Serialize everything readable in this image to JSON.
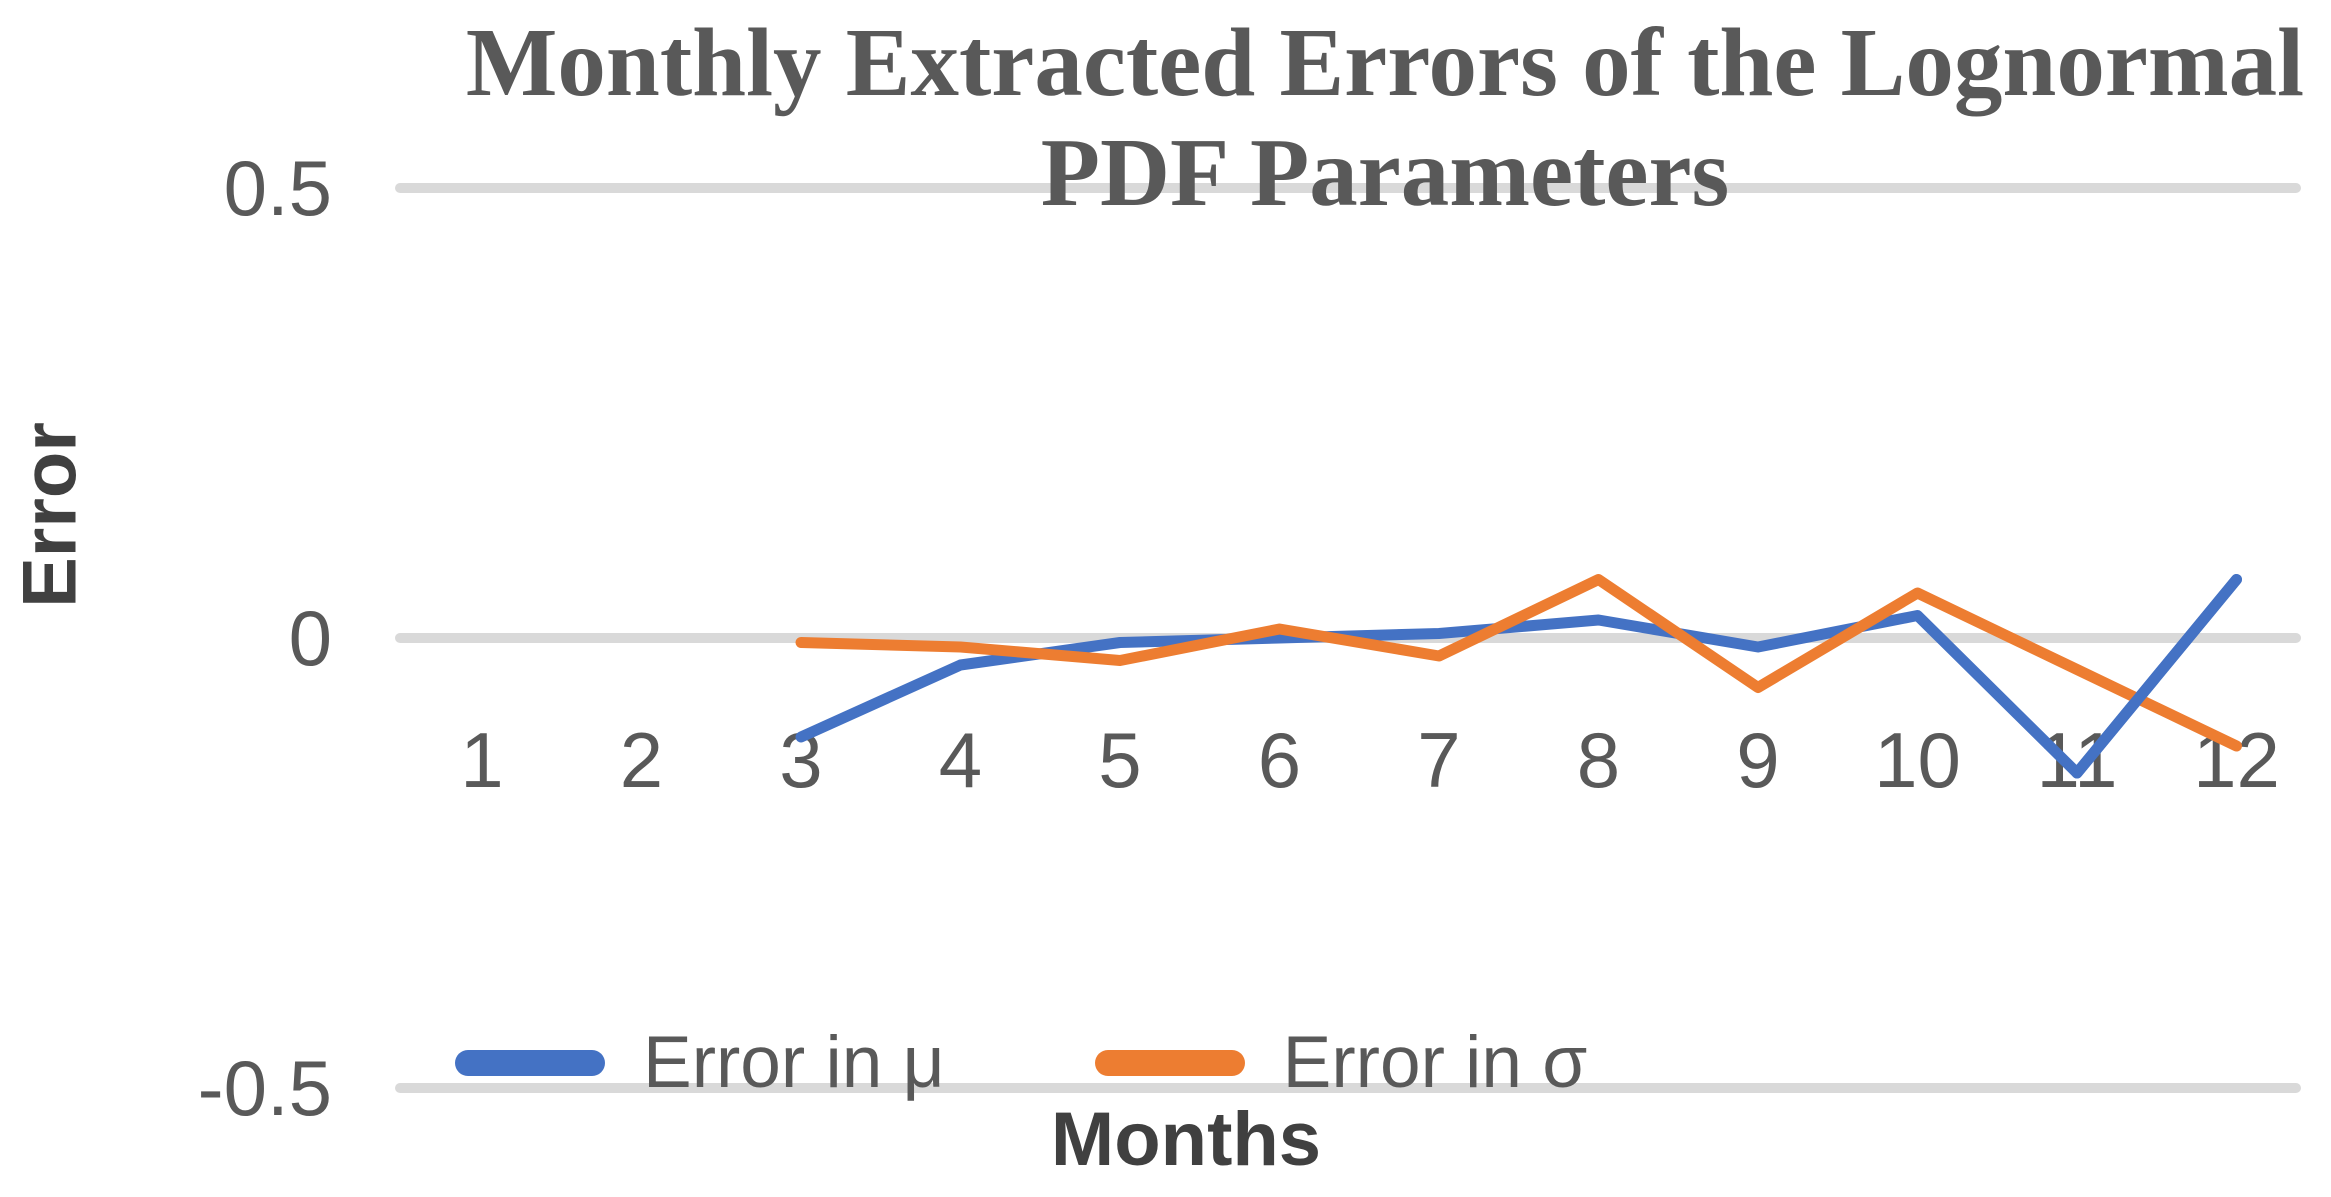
{
  "title": {
    "line1": "Monthly Extracted Errors of the Lognormal",
    "line2": "PDF Parameters"
  },
  "axes": {
    "y_label": "Error",
    "x_label": "Months",
    "y_ticks": [
      "0.5",
      "0",
      "-0.5"
    ],
    "x_ticks": [
      "1",
      "2",
      "3",
      "4",
      "5",
      "6",
      "7",
      "8",
      "9",
      "10",
      "11",
      "12"
    ]
  },
  "legend": [
    {
      "label": "Error in μ",
      "color": "#4472C4"
    },
    {
      "label": "Error in σ",
      "color": "#ED7D31"
    }
  ],
  "colors": {
    "series_mu": "#4472C4",
    "series_sigma": "#ED7D31",
    "gridline": "#D9D9D9",
    "tick_text": "#595959",
    "axis_title_text": "#404040",
    "title_text": "#595959",
    "background": "#FFFFFF"
  },
  "chart_data": {
    "type": "line",
    "title": "Monthly Extracted Errors of the Lognormal PDF Parameters",
    "xlabel": "Months",
    "ylabel": "Error",
    "categories": [
      1,
      2,
      3,
      4,
      5,
      6,
      7,
      8,
      9,
      10,
      11,
      12
    ],
    "series": [
      {
        "name": "Error in μ",
        "color": "#4472C4",
        "values": [
          null,
          null,
          -0.11,
          -0.03,
          -0.005,
          0.0,
          0.005,
          0.02,
          -0.01,
          0.025,
          -0.15,
          0.065
        ]
      },
      {
        "name": "Error in σ",
        "color": "#ED7D31",
        "values": [
          null,
          null,
          -0.005,
          -0.01,
          -0.025,
          0.01,
          -0.02,
          0.065,
          -0.055,
          0.05,
          -0.035,
          -0.12
        ]
      }
    ],
    "ylim": [
      -0.5,
      0.5
    ],
    "y_tick_values": [
      0.5,
      0,
      -0.5
    ],
    "grid": true,
    "legend_position": "bottom"
  }
}
